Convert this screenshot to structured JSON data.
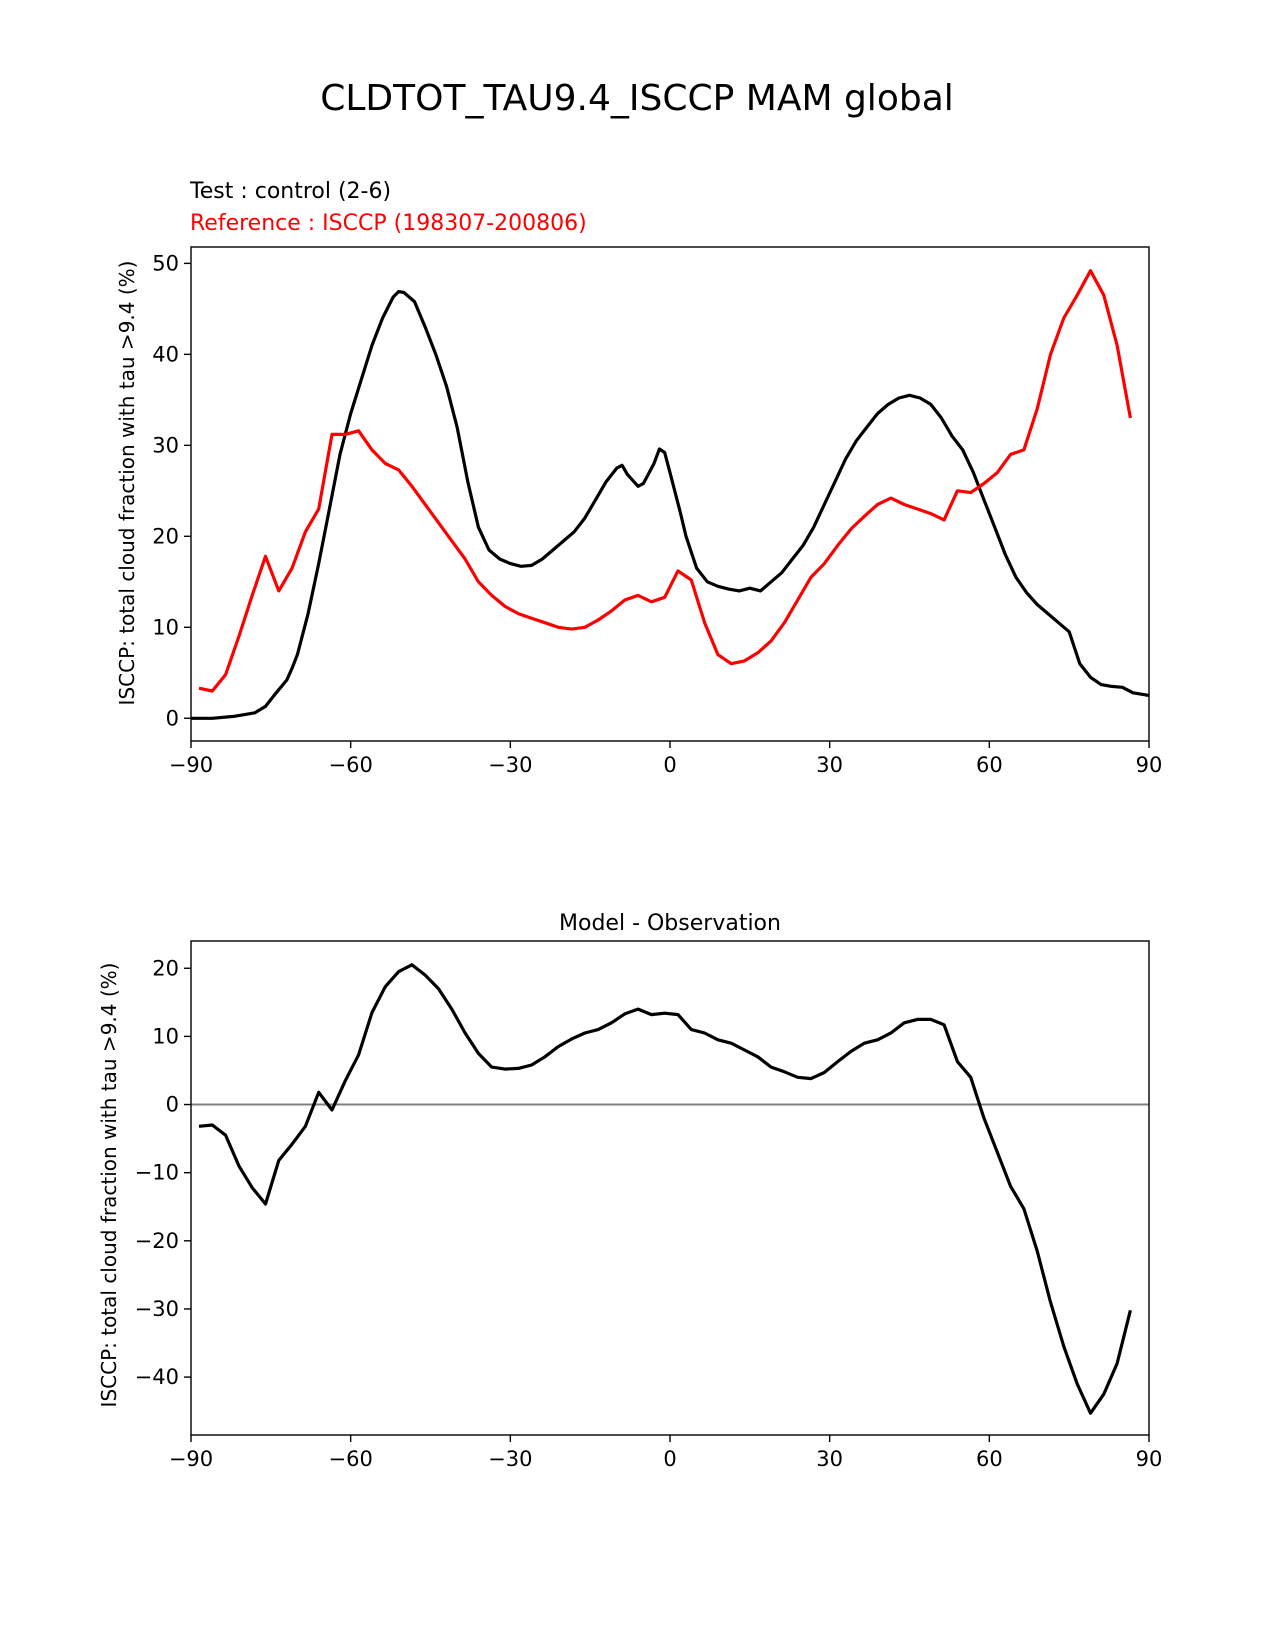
{
  "title": "CLDTOT_TAU9.4_ISCCP MAM global",
  "colors": {
    "test": "#000000",
    "reference": "#ff0000",
    "zero_line": "#808080"
  },
  "chart_data": [
    {
      "type": "line",
      "test_label": "Test : control (2-6)",
      "reference_label": "Reference : ISCCP (198307-200806)",
      "xlabel": "",
      "ylabel": "ISCCP: total cloud fraction with tau >9.4 (%)",
      "xlim": [
        -90,
        90
      ],
      "ylim": [
        -2.5,
        51.8
      ],
      "xticks": [
        -90,
        -60,
        -30,
        0,
        30,
        60,
        90
      ],
      "xtick_labels": [
        "−90",
        "−60",
        "−30",
        "0",
        "30",
        "60",
        "90"
      ],
      "yticks": [
        0,
        10,
        20,
        30,
        40,
        50
      ],
      "ytick_labels": [
        "0",
        "10",
        "20",
        "30",
        "40",
        "50"
      ],
      "series": [
        {
          "name": "Test : control (2-6)",
          "color": "#000000",
          "points": [
            [
              -90,
              0.0
            ],
            [
              -86,
              0.0
            ],
            [
              -82,
              0.2
            ],
            [
              -78,
              0.6
            ],
            [
              -76,
              1.3
            ],
            [
              -74,
              2.8
            ],
            [
              -72,
              4.2
            ],
            [
              -71,
              5.5
            ],
            [
              -70,
              7.0
            ],
            [
              -68,
              11.5
            ],
            [
              -66,
              17.0
            ],
            [
              -64,
              23.0
            ],
            [
              -62,
              29.0
            ],
            [
              -60,
              33.5
            ],
            [
              -56,
              41.0
            ],
            [
              -54,
              44.0
            ],
            [
              -52,
              46.3
            ],
            [
              -51,
              46.9
            ],
            [
              -50,
              46.8
            ],
            [
              -48,
              45.8
            ],
            [
              -46,
              43.0
            ],
            [
              -44,
              40.0
            ],
            [
              -42,
              36.5
            ],
            [
              -40,
              32.0
            ],
            [
              -38,
              26.0
            ],
            [
              -36,
              21.0
            ],
            [
              -34,
              18.5
            ],
            [
              -32,
              17.5
            ],
            [
              -30,
              17.0
            ],
            [
              -28,
              16.7
            ],
            [
              -26,
              16.8
            ],
            [
              -24,
              17.5
            ],
            [
              -22,
              18.5
            ],
            [
              -20,
              19.5
            ],
            [
              -18,
              20.5
            ],
            [
              -16,
              22.0
            ],
            [
              -14,
              24.0
            ],
            [
              -12,
              26.0
            ],
            [
              -10,
              27.5
            ],
            [
              -9,
              27.8
            ],
            [
              -8,
              26.8
            ],
            [
              -6,
              25.5
            ],
            [
              -5,
              25.8
            ],
            [
              -3,
              28.0
            ],
            [
              -2,
              29.6
            ],
            [
              -1,
              29.2
            ],
            [
              0,
              27.0
            ],
            [
              2,
              22.5
            ],
            [
              3,
              20.0
            ],
            [
              5,
              16.5
            ],
            [
              7,
              15.0
            ],
            [
              9,
              14.5
            ],
            [
              11,
              14.2
            ],
            [
              13,
              14.0
            ],
            [
              15,
              14.3
            ],
            [
              17,
              14.0
            ],
            [
              19,
              15.0
            ],
            [
              21,
              16.0
            ],
            [
              23,
              17.5
            ],
            [
              25,
              19.0
            ],
            [
              27,
              21.0
            ],
            [
              29,
              23.5
            ],
            [
              31,
              26.0
            ],
            [
              33,
              28.5
            ],
            [
              35,
              30.5
            ],
            [
              37,
              32.0
            ],
            [
              39,
              33.5
            ],
            [
              41,
              34.5
            ],
            [
              43,
              35.2
            ],
            [
              45,
              35.5
            ],
            [
              47,
              35.2
            ],
            [
              49,
              34.5
            ],
            [
              51,
              33.0
            ],
            [
              53,
              31.0
            ],
            [
              55,
              29.5
            ],
            [
              57,
              27.0
            ],
            [
              59,
              24.0
            ],
            [
              61,
              21.0
            ],
            [
              63,
              18.0
            ],
            [
              65,
              15.5
            ],
            [
              67,
              13.8
            ],
            [
              69,
              12.5
            ],
            [
              71,
              11.5
            ],
            [
              73,
              10.5
            ],
            [
              75,
              9.5
            ],
            [
              77,
              6.0
            ],
            [
              79,
              4.5
            ],
            [
              81,
              3.7
            ],
            [
              83,
              3.5
            ],
            [
              85,
              3.4
            ],
            [
              87,
              2.8
            ],
            [
              89,
              2.6
            ],
            [
              90,
              2.5
            ]
          ]
        },
        {
          "name": "Reference : ISCCP (198307-200806)",
          "color": "#ff0000",
          "points": [
            [
              -88.5,
              3.3
            ],
            [
              -86,
              3.0
            ],
            [
              -83.5,
              4.8
            ],
            [
              -81,
              9.0
            ],
            [
              -78.5,
              13.5
            ],
            [
              -76,
              17.8
            ],
            [
              -73.5,
              14.0
            ],
            [
              -71,
              16.5
            ],
            [
              -68.5,
              20.5
            ],
            [
              -66,
              23.0
            ],
            [
              -63.5,
              31.2
            ],
            [
              -61,
              31.2
            ],
            [
              -58.5,
              31.6
            ],
            [
              -56,
              29.5
            ],
            [
              -53.5,
              28.0
            ],
            [
              -51,
              27.3
            ],
            [
              -48.5,
              25.5
            ],
            [
              -46,
              23.5
            ],
            [
              -43.5,
              21.5
            ],
            [
              -41,
              19.5
            ],
            [
              -38.5,
              17.5
            ],
            [
              -36,
              15.0
            ],
            [
              -33.5,
              13.5
            ],
            [
              -31,
              12.3
            ],
            [
              -28.5,
              11.5
            ],
            [
              -26,
              11.0
            ],
            [
              -23.5,
              10.5
            ],
            [
              -21,
              10.0
            ],
            [
              -18.5,
              9.8
            ],
            [
              -16,
              10.0
            ],
            [
              -13.5,
              10.8
            ],
            [
              -11,
              11.8
            ],
            [
              -8.5,
              13.0
            ],
            [
              -6,
              13.5
            ],
            [
              -3.5,
              12.8
            ],
            [
              -1,
              13.3
            ],
            [
              1.5,
              16.2
            ],
            [
              4,
              15.2
            ],
            [
              6.5,
              10.5
            ],
            [
              9,
              7.0
            ],
            [
              11.5,
              6.0
            ],
            [
              14,
              6.3
            ],
            [
              16.5,
              7.2
            ],
            [
              19,
              8.5
            ],
            [
              21.5,
              10.5
            ],
            [
              24,
              13.0
            ],
            [
              26.5,
              15.5
            ],
            [
              29,
              17.0
            ],
            [
              31.5,
              19.0
            ],
            [
              34,
              20.8
            ],
            [
              36.5,
              22.2
            ],
            [
              39,
              23.5
            ],
            [
              41.5,
              24.2
            ],
            [
              44,
              23.5
            ],
            [
              46.5,
              23.0
            ],
            [
              49,
              22.5
            ],
            [
              51.5,
              21.8
            ],
            [
              54,
              25.0
            ],
            [
              56.5,
              24.8
            ],
            [
              59,
              25.8
            ],
            [
              61.5,
              27.0
            ],
            [
              64,
              29.0
            ],
            [
              66.5,
              29.5
            ],
            [
              69,
              34.0
            ],
            [
              71.5,
              40.0
            ],
            [
              74,
              44.0
            ],
            [
              76.5,
              46.5
            ],
            [
              79,
              49.2
            ],
            [
              81.5,
              46.5
            ],
            [
              84,
              41.0
            ],
            [
              86.5,
              33.0
            ]
          ]
        }
      ]
    },
    {
      "type": "line",
      "title": "Model - Observation",
      "xlabel": "",
      "ylabel": "ISCCP: total cloud fraction with tau >9.4 (%)",
      "xlim": [
        -90,
        90
      ],
      "ylim": [
        -48.5,
        24.0
      ],
      "xticks": [
        -90,
        -60,
        -30,
        0,
        30,
        60,
        90
      ],
      "xtick_labels": [
        "−90",
        "−60",
        "−30",
        "0",
        "30",
        "60",
        "90"
      ],
      "yticks": [
        -40,
        -30,
        -20,
        -10,
        0,
        10,
        20
      ],
      "ytick_labels": [
        "−40",
        "−30",
        "−20",
        "−10",
        "0",
        "10",
        "20"
      ],
      "zero_line": 0,
      "series": [
        {
          "name": "Model - Observation",
          "color": "#000000",
          "points": [
            [
              -88.5,
              -3.2
            ],
            [
              -86,
              -3.0
            ],
            [
              -83.5,
              -4.5
            ],
            [
              -81,
              -9.0
            ],
            [
              -78.5,
              -12.2
            ],
            [
              -76,
              -14.6
            ],
            [
              -73.5,
              -8.2
            ],
            [
              -71,
              -5.8
            ],
            [
              -68.5,
              -3.2
            ],
            [
              -66,
              1.8
            ],
            [
              -63.5,
              -0.8
            ],
            [
              -61,
              3.5
            ],
            [
              -58.5,
              7.3
            ],
            [
              -56,
              13.5
            ],
            [
              -53.5,
              17.3
            ],
            [
              -51,
              19.5
            ],
            [
              -48.5,
              20.5
            ],
            [
              -46,
              19.0
            ],
            [
              -43.5,
              17.0
            ],
            [
              -41,
              14.0
            ],
            [
              -38.5,
              10.5
            ],
            [
              -36,
              7.5
            ],
            [
              -33.5,
              5.5
            ],
            [
              -31,
              5.2
            ],
            [
              -28.5,
              5.3
            ],
            [
              -26,
              5.8
            ],
            [
              -23.5,
              7.0
            ],
            [
              -21,
              8.5
            ],
            [
              -18.5,
              9.6
            ],
            [
              -16,
              10.5
            ],
            [
              -13.5,
              11.0
            ],
            [
              -11,
              12.0
            ],
            [
              -8.5,
              13.3
            ],
            [
              -6,
              14.0
            ],
            [
              -3.5,
              13.2
            ],
            [
              -1,
              13.4
            ],
            [
              1.5,
              13.2
            ],
            [
              4,
              11.0
            ],
            [
              6.5,
              10.5
            ],
            [
              9,
              9.5
            ],
            [
              11.5,
              9.0
            ],
            [
              14,
              8.0
            ],
            [
              16.5,
              7.0
            ],
            [
              19,
              5.5
            ],
            [
              21.5,
              4.8
            ],
            [
              24,
              4.0
            ],
            [
              26.5,
              3.8
            ],
            [
              29,
              4.7
            ],
            [
              31.5,
              6.3
            ],
            [
              34,
              7.8
            ],
            [
              36.5,
              9.0
            ],
            [
              39,
              9.5
            ],
            [
              41.5,
              10.5
            ],
            [
              44,
              12.0
            ],
            [
              46.5,
              12.5
            ],
            [
              49,
              12.5
            ],
            [
              51.5,
              11.7
            ],
            [
              54,
              6.3
            ],
            [
              56.5,
              4.0
            ],
            [
              59,
              -2.0
            ],
            [
              61.5,
              -7.0
            ],
            [
              64,
              -12.0
            ],
            [
              66.5,
              -15.3
            ],
            [
              69,
              -21.5
            ],
            [
              71.5,
              -29.0
            ],
            [
              74,
              -35.5
            ],
            [
              76.5,
              -41.0
            ],
            [
              79,
              -45.3
            ],
            [
              81.5,
              -42.5
            ],
            [
              84,
              -38.0
            ],
            [
              86.5,
              -30.2
            ]
          ]
        }
      ]
    }
  ]
}
